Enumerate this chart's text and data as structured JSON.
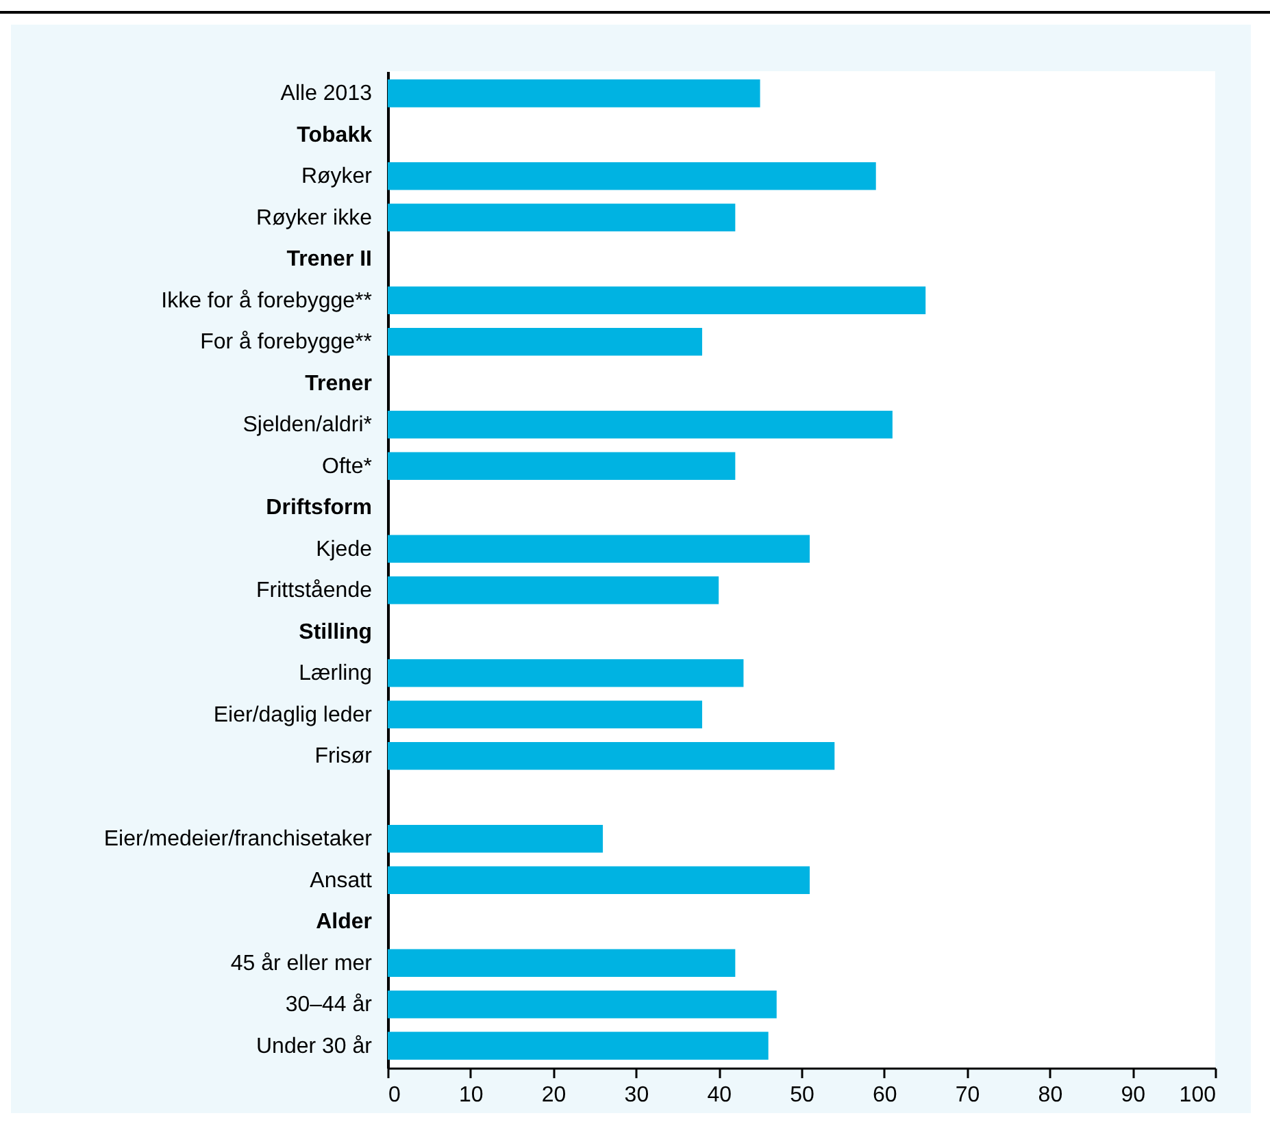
{
  "chart_data": {
    "type": "bar",
    "orientation": "horizontal",
    "categories": [
      "Alle 2013",
      "Tobakk",
      "Røyker",
      "Røyker ikke",
      "Trener II",
      "Ikke for å forebygge**",
      "For å forebygge**",
      "Trener",
      "Sjelden/aldri*",
      "Ofte*",
      "Driftsform",
      "Kjede",
      "Frittstående",
      "Stilling",
      "Lærling",
      "Eier/daglig leder",
      "Frisør",
      null,
      "Eier/medeier/franchisetaker",
      "Ansatt",
      "Alder",
      "45 år eller mer",
      "30–44 år",
      "Under 30 år"
    ],
    "values": [
      45,
      null,
      59,
      42,
      null,
      65,
      38,
      null,
      61,
      42,
      null,
      51,
      40,
      null,
      43,
      38,
      54,
      null,
      26,
      51,
      null,
      42,
      47,
      46
    ],
    "color": "#00b3e2",
    "xlim": [
      0,
      100
    ],
    "xticks": [
      0,
      10,
      20,
      30,
      40,
      50,
      60,
      70,
      80,
      90,
      100
    ]
  }
}
